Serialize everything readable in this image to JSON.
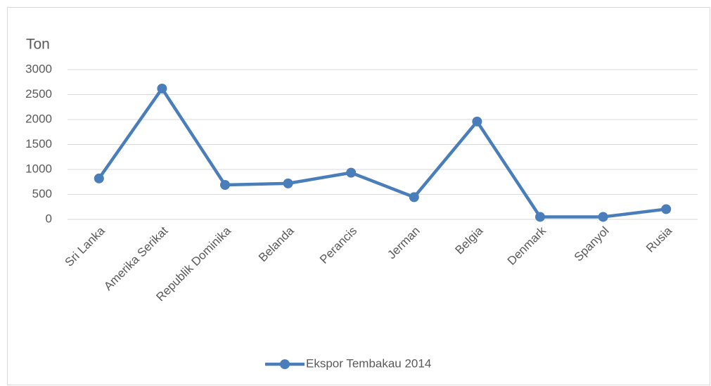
{
  "chart_data": {
    "type": "line",
    "y_axis_label": "Ton",
    "categories": [
      "Sri Lanka",
      "Amerika Serikat",
      "Republik Dominika",
      "Belanda",
      "Perancis",
      "Jerman",
      "Belgia",
      "Denmark",
      "Spanyol",
      "Rusia"
    ],
    "series": [
      {
        "name": "Ekspor Tembakau 2014",
        "color": "#4a7ebb",
        "values": [
          820,
          2620,
          690,
          720,
          935,
          445,
          1960,
          50,
          50,
          205
        ]
      }
    ],
    "ylim": [
      0,
      3000
    ],
    "yticks": [
      0,
      500,
      1000,
      1500,
      2000,
      2500,
      3000
    ],
    "grid": true,
    "legend": "bottom"
  }
}
